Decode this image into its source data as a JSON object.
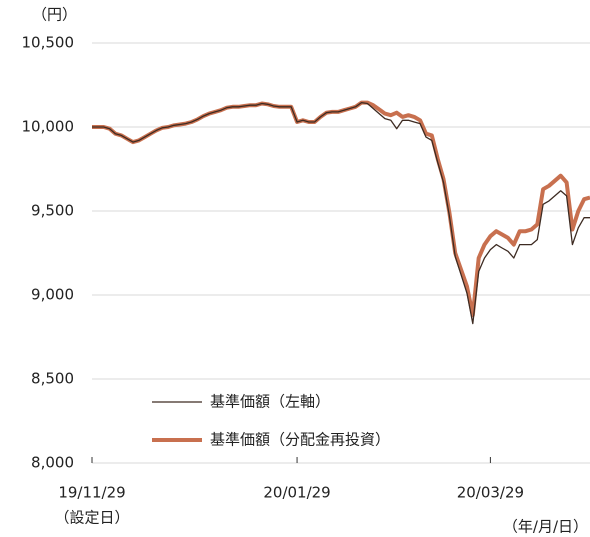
{
  "chart_data": {
    "type": "line",
    "y_label": "（円）",
    "x_label": "（年/月/日）",
    "x_sublabel": "（設定日）",
    "categories": [
      "19/11/29",
      null,
      null,
      null,
      null,
      null,
      null,
      null,
      null,
      null,
      null,
      null,
      null,
      null,
      null,
      null,
      null,
      null,
      null,
      null,
      null,
      null,
      null,
      null,
      null,
      null,
      null,
      null,
      null,
      null,
      null,
      null,
      null,
      null,
      null,
      "20/01/29",
      null,
      null,
      null,
      null,
      null,
      null,
      null,
      null,
      null,
      null,
      null,
      null,
      null,
      null,
      null,
      null,
      null,
      null,
      null,
      null,
      null,
      null,
      null,
      null,
      null,
      null,
      null,
      null,
      null,
      null,
      null,
      null,
      "20/03/29",
      null,
      null,
      null,
      null,
      null,
      null,
      null,
      null,
      null,
      null,
      null,
      null,
      null,
      null,
      null,
      null,
      null
    ],
    "series": [
      {
        "name": "基準価額（左軸）",
        "color": "#3d2b22",
        "width": 1.3,
        "values": [
          10000,
          10000,
          10000,
          9990,
          9960,
          9950,
          9930,
          9910,
          9920,
          9940,
          9960,
          9980,
          9995,
          10000,
          10010,
          10015,
          10020,
          10030,
          10045,
          10065,
          10080,
          10090,
          10100,
          10115,
          10120,
          10120,
          10125,
          10130,
          10130,
          10140,
          10135,
          10125,
          10120,
          10120,
          10120,
          10030,
          10040,
          10030,
          10030,
          10060,
          10085,
          10090,
          10090,
          10100,
          10110,
          10120,
          10145,
          10140,
          10110,
          10080,
          10050,
          10040,
          9990,
          10040,
          10040,
          10030,
          10020,
          9940,
          9920,
          9790,
          9670,
          9470,
          9230,
          9120,
          9010,
          8830,
          9140,
          9220,
          9270,
          9300,
          9280,
          9260,
          9220,
          9300,
          9300,
          9300,
          9330,
          9540,
          9560,
          9590,
          9620,
          9590,
          9300,
          9400,
          9460,
          9460
        ]
      },
      {
        "name": "基準価額（分配金再投資）",
        "color": "#c8704f",
        "width": 4,
        "values": [
          10000,
          10000,
          10000,
          9990,
          9960,
          9950,
          9930,
          9910,
          9920,
          9940,
          9960,
          9980,
          9995,
          10000,
          10010,
          10015,
          10020,
          10030,
          10045,
          10065,
          10080,
          10090,
          10100,
          10115,
          10120,
          10120,
          10125,
          10130,
          10130,
          10140,
          10135,
          10125,
          10120,
          10120,
          10120,
          10030,
          10040,
          10030,
          10030,
          10060,
          10085,
          10090,
          10090,
          10100,
          10110,
          10120,
          10145,
          10145,
          10130,
          10105,
          10080,
          10070,
          10085,
          10060,
          10070,
          10060,
          10040,
          9960,
          9950,
          9810,
          9690,
          9490,
          9250,
          9150,
          9050,
          8880,
          9220,
          9300,
          9350,
          9380,
          9360,
          9340,
          9300,
          9380,
          9380,
          9390,
          9420,
          9630,
          9650,
          9680,
          9710,
          9670,
          9390,
          9500,
          9570,
          9580
        ]
      }
    ],
    "ylim": [
      8000,
      10500
    ],
    "yticks": [
      {
        "value": 8000,
        "label": "8,000"
      },
      {
        "value": 8500,
        "label": "8,500"
      },
      {
        "value": 9000,
        "label": "9,000"
      },
      {
        "value": 9500,
        "label": "9,500"
      },
      {
        "value": 10000,
        "label": "10,000"
      },
      {
        "value": 10500,
        "label": "10,500"
      }
    ],
    "grid": true,
    "legend": "bottom-left"
  }
}
